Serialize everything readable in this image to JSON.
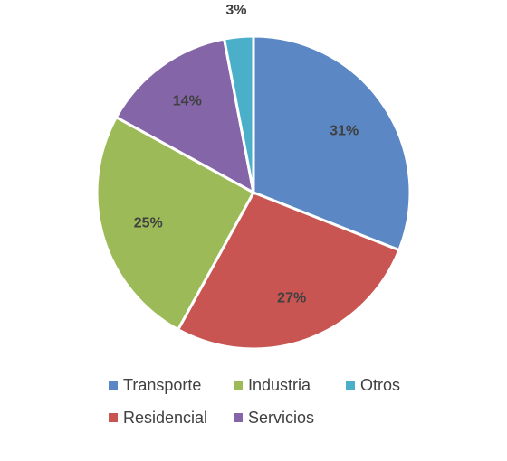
{
  "chart_data": {
    "type": "pie",
    "categories": [
      "Transporte",
      "Residencial",
      "Industria",
      "Servicios",
      "Otros"
    ],
    "values": [
      31,
      27,
      25,
      14,
      3
    ],
    "value_labels": [
      "31%",
      "27%",
      "25%",
      "14%",
      "3%"
    ],
    "colors": [
      "#5b87c5",
      "#c95552",
      "#9cbb58",
      "#8466a8",
      "#4bafc9"
    ],
    "legend": {
      "placement": "bottom",
      "entries": [
        "Transporte",
        "Industria",
        "Otros",
        "Residencial",
        "Servicios"
      ]
    }
  }
}
